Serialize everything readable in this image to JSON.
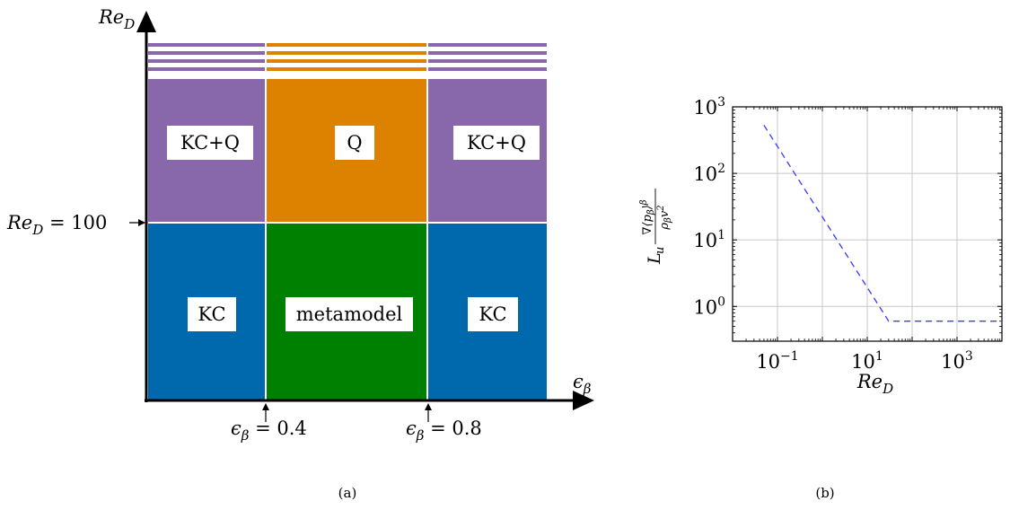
{
  "colors": {
    "purple": "#8868ab",
    "orange": "#dd8200",
    "blue": "#0068ad",
    "green": "#008000",
    "grid": "#c8c8c8",
    "dashed_line": "#3a3aff"
  },
  "panel_a": {
    "y_axis_label": "Re_D",
    "x_axis_label": "ε_β",
    "re_marker": "Re_D = 100",
    "eps_marker_1": "ε_β = 0.4",
    "eps_marker_2": "ε_β = 0.8",
    "cells": {
      "top_left": "KC+Q",
      "top_middle": "Q",
      "top_right": "KC+Q",
      "bottom_left": "KC",
      "bottom_middle": "metamodel",
      "bottom_right": "KC"
    },
    "caption": "(a)"
  },
  "panel_b": {
    "caption": "(b)",
    "chart_data": {
      "type": "line",
      "x_scale": "log",
      "y_scale": "log",
      "xlim": [
        0.01,
        10000
      ],
      "ylim": [
        0.3,
        1000
      ],
      "x_ticks": [
        {
          "value": 0.1,
          "base": "10",
          "exp": "−1"
        },
        {
          "value": 10,
          "base": "10",
          "exp": "1"
        },
        {
          "value": 1000,
          "base": "10",
          "exp": "3"
        }
      ],
      "y_ticks": [
        {
          "value": 1,
          "base": "10",
          "exp": "0"
        },
        {
          "value": 10,
          "base": "10",
          "exp": "1"
        },
        {
          "value": 100,
          "base": "10",
          "exp": "2"
        },
        {
          "value": 1000,
          "base": "10",
          "exp": "3"
        }
      ],
      "xlabel": "Re_D",
      "ylabel": "L_u ∇⟨p_β⟩^β / ρ_β v²",
      "grid": true,
      "series": [
        {
          "style": "dashed",
          "x": [
            0.05,
            30,
            10000
          ],
          "y": [
            530,
            0.6,
            0.6
          ]
        }
      ]
    }
  }
}
